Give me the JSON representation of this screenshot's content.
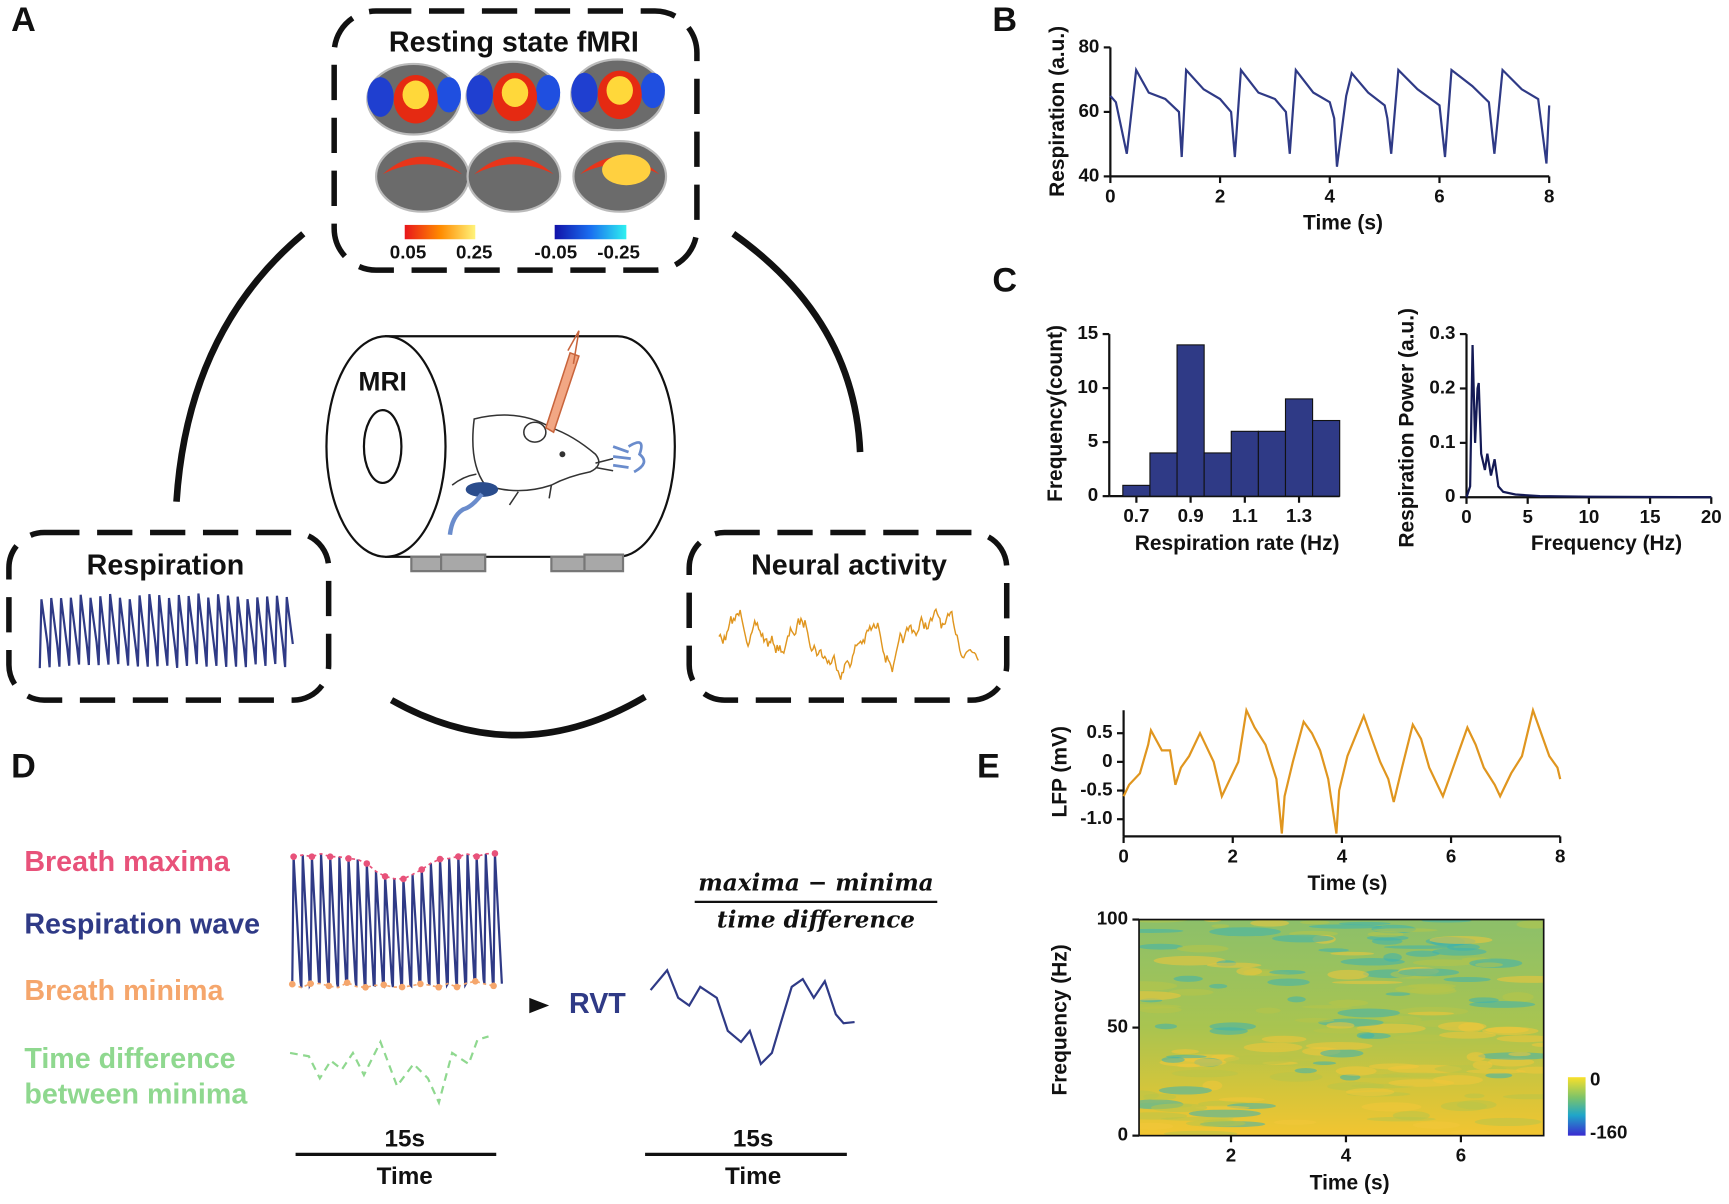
{
  "panel_labels": [
    "A",
    "B",
    "C",
    "D",
    "E"
  ],
  "diagram": {
    "fmri_title": "Resting state fMRI",
    "fmri_scale": [
      "0.05",
      "0.25",
      "-0.05",
      "-0.25"
    ],
    "mri": "MRI",
    "respiration": "Respiration",
    "neural": "Neural activity"
  },
  "rvt": {
    "maxima": "Breath maxima",
    "wave": "Respiration wave",
    "minima": "Breath minima",
    "timediff": [
      "Time difference",
      "between minima"
    ],
    "scale": "15s",
    "time": "Time",
    "rvt": "RVT",
    "numerator": "maxima − minima",
    "denominator": "time difference"
  },
  "chart_data": [
    {
      "type": "line",
      "color": "#2f3a86",
      "xlabel": "Time (s)",
      "ylabel": "Respiration (a.u.)",
      "x": [
        0,
        0.1,
        0.3,
        0.47,
        0.7,
        1.0,
        1.25,
        1.3,
        1.38,
        1.7,
        2.0,
        2.2,
        2.27,
        2.38,
        2.7,
        3.0,
        3.2,
        3.27,
        3.38,
        3.7,
        4.0,
        4.08,
        4.13,
        4.3,
        4.4,
        4.7,
        5.0,
        5.05,
        5.12,
        5.25,
        5.6,
        6.0,
        6.1,
        6.22,
        6.6,
        6.9,
        7.0,
        7.15,
        7.5,
        7.8,
        7.95,
        8.0
      ],
      "values": [
        65,
        63,
        47,
        73,
        66,
        64,
        60,
        46,
        73,
        67,
        64,
        60,
        46,
        73,
        66,
        64,
        60,
        47,
        73,
        66,
        63,
        58,
        43,
        65,
        72,
        66,
        62,
        58,
        47,
        73,
        67,
        62,
        46,
        73,
        68,
        63,
        47,
        73,
        67,
        64,
        44,
        62
      ],
      "xlim": [
        0,
        8
      ],
      "xticks": [
        0,
        2,
        4,
        6,
        8
      ],
      "ylim": [
        40,
        80
      ],
      "yticks": [
        40,
        60,
        80
      ]
    },
    {
      "type": "histogram",
      "color": "#2f3a86",
      "xlabel": "Respiration rate (Hz)",
      "ylabel": "Frequency(count)",
      "bins": [
        0.65,
        0.75,
        0.85,
        0.95,
        1.05,
        1.15,
        1.25,
        1.35,
        1.45
      ],
      "values": [
        1,
        4,
        14,
        4,
        6,
        6,
        9,
        7
      ],
      "xlim": [
        0.6,
        1.45
      ],
      "xticks": [
        0.7,
        0.9,
        1.1,
        1.3
      ],
      "ylim": [
        0,
        15
      ],
      "yticks": [
        0,
        5,
        10,
        15
      ]
    },
    {
      "type": "line",
      "color": "#141a55",
      "xlabel": "Frequency (Hz)",
      "ylabel": "Respiration Power (a.u.)",
      "x": [
        0,
        0.3,
        0.5,
        0.7,
        0.9,
        1.0,
        1.2,
        1.5,
        1.7,
        2.0,
        2.3,
        2.6,
        3,
        4,
        6,
        10,
        20
      ],
      "values": [
        0,
        0.02,
        0.28,
        0.1,
        0.2,
        0.21,
        0.08,
        0.05,
        0.08,
        0.04,
        0.07,
        0.02,
        0.01,
        0.005,
        0.002,
        0.001,
        0
      ],
      "xlim": [
        0,
        20
      ],
      "xticks": [
        0,
        5,
        10,
        15,
        20
      ],
      "ylim": [
        0,
        0.3
      ],
      "yticks": [
        0,
        0.1,
        0.2,
        0.3
      ]
    },
    {
      "type": "line",
      "color": "#e0961f",
      "xlabel": "Time (s)",
      "ylabel": "LFP (mV)",
      "x": [
        0,
        0.1,
        0.3,
        0.45,
        0.5,
        0.7,
        0.85,
        0.95,
        1.05,
        1.2,
        1.4,
        1.5,
        1.65,
        1.8,
        1.95,
        2.1,
        2.25,
        2.4,
        2.6,
        2.8,
        2.9,
        2.95,
        3.1,
        3.3,
        3.45,
        3.6,
        3.75,
        3.9,
        3.95,
        4.1,
        4.4,
        4.55,
        4.7,
        4.85,
        4.95,
        5.1,
        5.3,
        5.45,
        5.6,
        5.75,
        5.85,
        6.0,
        6.3,
        6.45,
        6.6,
        6.8,
        6.9,
        7.1,
        7.3,
        7.5,
        7.65,
        7.8,
        7.95,
        8.0
      ],
      "values": [
        -0.6,
        -0.4,
        -0.2,
        0.3,
        0.55,
        0.2,
        0.2,
        -0.4,
        -0.1,
        0.1,
        0.5,
        0.3,
        0.0,
        -0.6,
        -0.3,
        0.0,
        0.9,
        0.6,
        0.3,
        -0.3,
        -1.25,
        -0.6,
        0.0,
        0.7,
        0.5,
        0.2,
        -0.3,
        -1.25,
        -0.5,
        0.1,
        0.8,
        0.4,
        0.0,
        -0.3,
        -0.7,
        -0.1,
        0.65,
        0.4,
        -0.1,
        -0.4,
        -0.6,
        -0.2,
        0.6,
        0.3,
        -0.1,
        -0.4,
        -0.6,
        -0.2,
        0.1,
        0.9,
        0.5,
        0.1,
        -0.1,
        -0.3
      ],
      "xlim": [
        0,
        8
      ],
      "xticks": [
        0,
        2,
        4,
        6,
        8
      ],
      "ylim": [
        -1.3,
        0.9
      ],
      "yticks": [
        0.5,
        0,
        -0.5,
        {
          "value": -1,
          "label": "-1.0"
        }
      ]
    },
    {
      "type": "spectrogram",
      "xlabel": "Time (s)",
      "ylabel": "Frequency  (Hz)",
      "xlim": [
        0.4,
        7.44
      ],
      "xticks": [
        2,
        4,
        6
      ],
      "ylim": [
        0,
        100
      ],
      "yticks": [
        0,
        50,
        100
      ],
      "colorbar_ticks": [
        0,
        -160
      ]
    }
  ]
}
